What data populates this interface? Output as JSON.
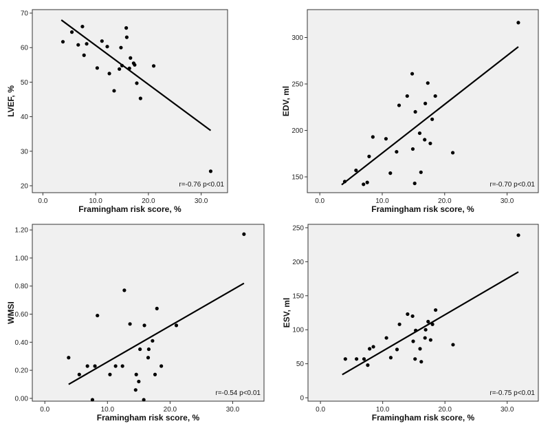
{
  "chart_data": [
    {
      "type": "scatter",
      "xlabel": "Framingham risk score, %",
      "ylabel": "LVEF, %",
      "xlim": [
        -2,
        35
      ],
      "ylim": [
        18,
        71
      ],
      "xticks": [
        "0.0",
        "10.0",
        "20.0",
        "30.0"
      ],
      "yticks": [
        "20",
        "30",
        "40",
        "50",
        "60",
        "70"
      ],
      "points": [
        {
          "x": 3.8,
          "y": 61.7
        },
        {
          "x": 5.5,
          "y": 64.5
        },
        {
          "x": 6.7,
          "y": 60.8
        },
        {
          "x": 7.5,
          "y": 66.1
        },
        {
          "x": 7.8,
          "y": 57.8
        },
        {
          "x": 8.3,
          "y": 61.1
        },
        {
          "x": 10.3,
          "y": 54.1
        },
        {
          "x": 11.2,
          "y": 61.9
        },
        {
          "x": 12.2,
          "y": 60.3
        },
        {
          "x": 12.6,
          "y": 52.5
        },
        {
          "x": 13.5,
          "y": 47.5
        },
        {
          "x": 14.5,
          "y": 53.8
        },
        {
          "x": 14.8,
          "y": 60.0
        },
        {
          "x": 15.0,
          "y": 54.8
        },
        {
          "x": 15.8,
          "y": 65.7
        },
        {
          "x": 15.9,
          "y": 63.0
        },
        {
          "x": 16.4,
          "y": 54.0
        },
        {
          "x": 16.6,
          "y": 57.0
        },
        {
          "x": 17.2,
          "y": 55.5
        },
        {
          "x": 17.4,
          "y": 55.0
        },
        {
          "x": 17.8,
          "y": 49.7
        },
        {
          "x": 18.5,
          "y": 45.3
        },
        {
          "x": 21.0,
          "y": 54.7
        },
        {
          "x": 31.8,
          "y": 24.2
        }
      ],
      "fit_line": {
        "x": [
          3.5,
          31.8
        ],
        "y": [
          68.0,
          36.0
        ]
      },
      "annotation": "r=-0.76 p<0.01"
    },
    {
      "type": "scatter",
      "xlabel": "Framingham risk score, %",
      "ylabel": "EDV, ml",
      "xlim": [
        -2,
        35
      ],
      "ylim": [
        133,
        330
      ],
      "xticks": [
        "0.0",
        "10.0",
        "20.0",
        "30.0"
      ],
      "yticks": [
        "150",
        "200",
        "250",
        "300"
      ],
      "points": [
        {
          "x": 4.0,
          "y": 145
        },
        {
          "x": 5.8,
          "y": 157
        },
        {
          "x": 7.0,
          "y": 142
        },
        {
          "x": 7.6,
          "y": 144
        },
        {
          "x": 7.9,
          "y": 172
        },
        {
          "x": 8.5,
          "y": 193
        },
        {
          "x": 10.6,
          "y": 191
        },
        {
          "x": 11.3,
          "y": 154
        },
        {
          "x": 12.3,
          "y": 177
        },
        {
          "x": 12.7,
          "y": 227
        },
        {
          "x": 14.0,
          "y": 237
        },
        {
          "x": 14.8,
          "y": 261
        },
        {
          "x": 14.9,
          "y": 180
        },
        {
          "x": 15.2,
          "y": 143
        },
        {
          "x": 15.3,
          "y": 220
        },
        {
          "x": 16.0,
          "y": 197
        },
        {
          "x": 16.2,
          "y": 155
        },
        {
          "x": 16.8,
          "y": 190
        },
        {
          "x": 16.9,
          "y": 229
        },
        {
          "x": 17.3,
          "y": 251
        },
        {
          "x": 17.7,
          "y": 186
        },
        {
          "x": 18.0,
          "y": 212
        },
        {
          "x": 18.5,
          "y": 237
        },
        {
          "x": 21.3,
          "y": 176
        },
        {
          "x": 31.8,
          "y": 316
        }
      ],
      "fit_line": {
        "x": [
          3.5,
          31.8
        ],
        "y": [
          141.5,
          290.0
        ]
      },
      "annotation": "r=-0.70 p<0.01"
    },
    {
      "type": "scatter",
      "xlabel": "Framingham risk score, %",
      "ylabel": "WMSI",
      "xlim": [
        -2,
        35
      ],
      "ylim": [
        -0.02,
        1.24
      ],
      "xticks": [
        "0.0",
        "10.0",
        "20.0",
        "30.0"
      ],
      "yticks": [
        "0.00",
        "0.20",
        "0.40",
        "0.60",
        "0.80",
        "1.00",
        "1.20"
      ],
      "points": [
        {
          "x": 3.8,
          "y": 0.29
        },
        {
          "x": 5.5,
          "y": 0.17
        },
        {
          "x": 6.8,
          "y": 0.23
        },
        {
          "x": 7.6,
          "y": -0.01
        },
        {
          "x": 8.0,
          "y": 0.23
        },
        {
          "x": 8.4,
          "y": 0.59
        },
        {
          "x": 10.4,
          "y": 0.17
        },
        {
          "x": 11.3,
          "y": 0.23
        },
        {
          "x": 12.4,
          "y": 0.23
        },
        {
          "x": 12.7,
          "y": 0.77
        },
        {
          "x": 13.6,
          "y": 0.53
        },
        {
          "x": 14.5,
          "y": 0.06
        },
        {
          "x": 14.6,
          "y": 0.17
        },
        {
          "x": 15.0,
          "y": 0.12
        },
        {
          "x": 15.2,
          "y": 0.35
        },
        {
          "x": 15.8,
          "y": -0.01
        },
        {
          "x": 15.9,
          "y": 0.52
        },
        {
          "x": 16.5,
          "y": 0.29
        },
        {
          "x": 16.6,
          "y": 0.35
        },
        {
          "x": 17.2,
          "y": 0.41
        },
        {
          "x": 17.6,
          "y": 0.17
        },
        {
          "x": 17.9,
          "y": 0.64
        },
        {
          "x": 18.6,
          "y": 0.23
        },
        {
          "x": 21.0,
          "y": 0.52
        },
        {
          "x": 31.8,
          "y": 1.17
        }
      ],
      "fit_line": {
        "x": [
          3.8,
          31.8
        ],
        "y": [
          0.1,
          0.82
        ]
      },
      "annotation": "r=-0.54 p<0.01"
    },
    {
      "type": "scatter",
      "xlabel": "Framingham risk score, %",
      "ylabel": "ESV, ml",
      "xlim": [
        -2,
        35
      ],
      "ylim": [
        -5,
        255
      ],
      "xticks": [
        "0.0",
        "10.0",
        "20.0",
        "30.0"
      ],
      "yticks": [
        "0",
        "50",
        "100",
        "150",
        "200",
        "250"
      ],
      "points": [
        {
          "x": 4.0,
          "y": 57
        },
        {
          "x": 5.8,
          "y": 57
        },
        {
          "x": 7.0,
          "y": 57
        },
        {
          "x": 7.6,
          "y": 48
        },
        {
          "x": 7.9,
          "y": 72
        },
        {
          "x": 8.5,
          "y": 75
        },
        {
          "x": 10.6,
          "y": 88
        },
        {
          "x": 11.3,
          "y": 59
        },
        {
          "x": 12.3,
          "y": 71
        },
        {
          "x": 12.7,
          "y": 108
        },
        {
          "x": 14.0,
          "y": 123
        },
        {
          "x": 14.8,
          "y": 120
        },
        {
          "x": 14.9,
          "y": 83
        },
        {
          "x": 15.2,
          "y": 57
        },
        {
          "x": 15.3,
          "y": 99
        },
        {
          "x": 16.0,
          "y": 72
        },
        {
          "x": 16.2,
          "y": 53
        },
        {
          "x": 16.8,
          "y": 88
        },
        {
          "x": 16.9,
          "y": 100
        },
        {
          "x": 17.3,
          "y": 112
        },
        {
          "x": 17.7,
          "y": 85
        },
        {
          "x": 18.0,
          "y": 108
        },
        {
          "x": 18.5,
          "y": 129
        },
        {
          "x": 21.3,
          "y": 78
        },
        {
          "x": 31.8,
          "y": 239
        }
      ],
      "fit_line": {
        "x": [
          3.5,
          31.8
        ],
        "y": [
          34.0,
          185.0
        ]
      },
      "annotation": "r=-0.75 p<0.01"
    }
  ]
}
